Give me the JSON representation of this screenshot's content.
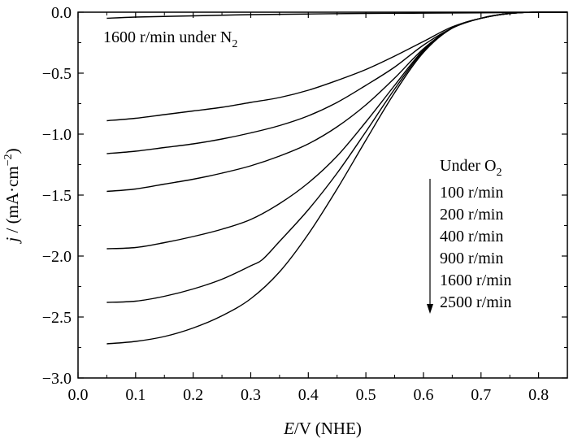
{
  "chart_data": {
    "type": "line",
    "title": "",
    "xlabel": {
      "italic": "E",
      "rest": "/V (NHE)"
    },
    "ylabel": {
      "italic": "j",
      "rest": " / (mA·cm",
      "sup": "−2",
      "close": ")"
    },
    "xlim": [
      0.0,
      0.85
    ],
    "ylim": [
      -3.0,
      0.0
    ],
    "xticks": [
      0.0,
      0.1,
      0.2,
      0.3,
      0.4,
      0.5,
      0.6,
      0.7,
      0.8
    ],
    "xtick_labels": [
      "0.0",
      "0.1",
      "0.2",
      "0.3",
      "0.4",
      "0.5",
      "0.6",
      "0.7",
      "0.8"
    ],
    "yticks": [
      0.0,
      -0.5,
      -1.0,
      -1.5,
      -2.0,
      -2.5,
      -3.0
    ],
    "ytick_labels": [
      "0.0",
      "−0.5",
      "−1.0",
      "−1.5",
      "−2.0",
      "−2.5",
      "−3.0"
    ],
    "grid": false,
    "annotations": {
      "n2_label": {
        "text": "1600 r/min under N",
        "sub": "2"
      },
      "o2_header": {
        "text": "Under O",
        "sub": "2"
      },
      "o2_rates": [
        "100 r/min",
        "200 r/min",
        "400 r/min",
        "900 r/min",
        "1600 r/min",
        "2500 r/min"
      ]
    },
    "series": [
      {
        "x": [
          0.05,
          0.1,
          0.2,
          0.3,
          0.4,
          0.5,
          0.6,
          0.7,
          0.8,
          0.85
        ],
        "y": [
          -0.05,
          -0.04,
          -0.03,
          -0.02,
          -0.015,
          -0.01,
          -0.008,
          -0.005,
          -0.002,
          0.0
        ]
      },
      {
        "x": [
          0.05,
          0.1,
          0.15,
          0.2,
          0.25,
          0.3,
          0.35,
          0.4,
          0.45,
          0.5,
          0.55,
          0.6,
          0.65,
          0.7,
          0.75,
          0.8,
          0.85
        ],
        "y": [
          -0.89,
          -0.87,
          -0.84,
          -0.81,
          -0.78,
          -0.74,
          -0.7,
          -0.64,
          -0.56,
          -0.47,
          -0.36,
          -0.24,
          -0.12,
          -0.05,
          -0.01,
          0.0,
          0.0
        ]
      },
      {
        "x": [
          0.05,
          0.1,
          0.15,
          0.2,
          0.25,
          0.3,
          0.35,
          0.4,
          0.45,
          0.5,
          0.55,
          0.6,
          0.65,
          0.7,
          0.75,
          0.8,
          0.85
        ],
        "y": [
          -1.16,
          -1.14,
          -1.11,
          -1.08,
          -1.04,
          -0.99,
          -0.93,
          -0.85,
          -0.74,
          -0.6,
          -0.45,
          -0.27,
          -0.13,
          -0.05,
          -0.01,
          0.0,
          0.0
        ]
      },
      {
        "x": [
          0.05,
          0.1,
          0.15,
          0.2,
          0.25,
          0.3,
          0.35,
          0.4,
          0.45,
          0.5,
          0.55,
          0.6,
          0.65,
          0.7,
          0.75,
          0.8,
          0.85
        ],
        "y": [
          -1.47,
          -1.45,
          -1.41,
          -1.37,
          -1.32,
          -1.26,
          -1.18,
          -1.08,
          -0.94,
          -0.76,
          -0.54,
          -0.3,
          -0.13,
          -0.05,
          -0.01,
          0.0,
          0.0
        ]
      },
      {
        "x": [
          0.05,
          0.1,
          0.15,
          0.2,
          0.25,
          0.3,
          0.35,
          0.4,
          0.45,
          0.5,
          0.55,
          0.6,
          0.65,
          0.7,
          0.75,
          0.8,
          0.85
        ],
        "y": [
          -1.94,
          -1.93,
          -1.89,
          -1.84,
          -1.78,
          -1.7,
          -1.57,
          -1.4,
          -1.18,
          -0.9,
          -0.6,
          -0.31,
          -0.13,
          -0.05,
          -0.01,
          0.0,
          0.0
        ]
      },
      {
        "x": [
          0.05,
          0.1,
          0.15,
          0.2,
          0.25,
          0.3,
          0.32,
          0.35,
          0.4,
          0.45,
          0.5,
          0.55,
          0.6,
          0.65,
          0.7,
          0.75,
          0.8,
          0.85
        ],
        "y": [
          -2.38,
          -2.37,
          -2.33,
          -2.27,
          -2.19,
          -2.08,
          -2.03,
          -1.88,
          -1.62,
          -1.32,
          -0.98,
          -0.63,
          -0.32,
          -0.13,
          -0.05,
          -0.01,
          0.0,
          0.0
        ]
      },
      {
        "x": [
          0.05,
          0.1,
          0.15,
          0.2,
          0.25,
          0.3,
          0.35,
          0.4,
          0.45,
          0.5,
          0.55,
          0.6,
          0.65,
          0.7,
          0.75,
          0.8,
          0.85
        ],
        "y": [
          -2.72,
          -2.7,
          -2.66,
          -2.59,
          -2.49,
          -2.35,
          -2.13,
          -1.82,
          -1.45,
          -1.05,
          -0.66,
          -0.33,
          -0.13,
          -0.05,
          -0.01,
          0.0,
          0.0
        ]
      }
    ]
  }
}
